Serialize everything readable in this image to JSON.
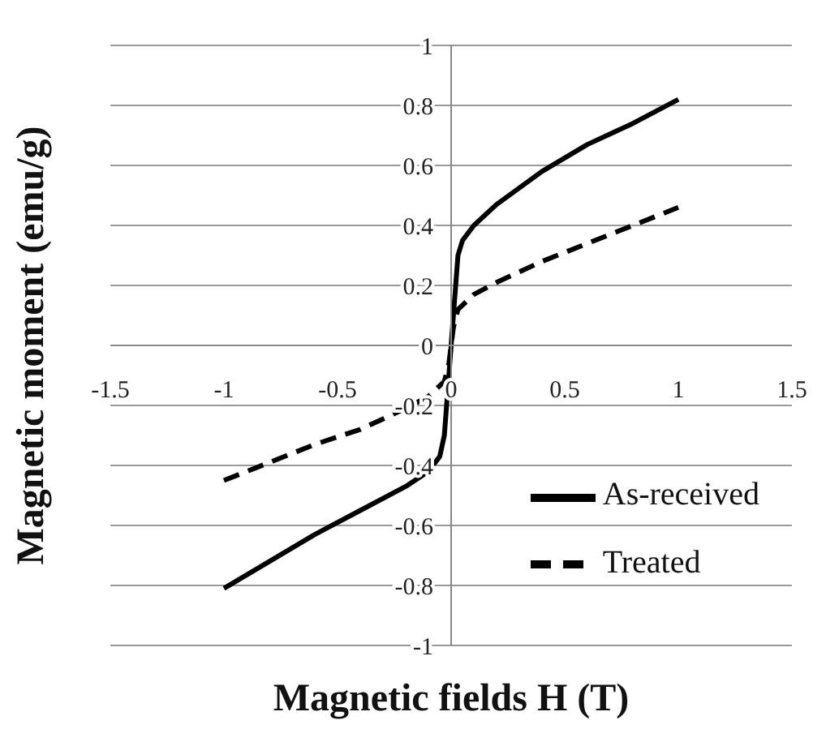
{
  "chart_data": {
    "type": "line",
    "xlabel": "Magnetic fields H (T)",
    "ylabel": "Magnetic moment (emu/g)",
    "xlim": [
      -1.5,
      1.5
    ],
    "xticks": [
      -1.5,
      -1,
      -0.5,
      0,
      0.5,
      1,
      1.5
    ],
    "ylim": [
      -1,
      1
    ],
    "yticks": [
      -1,
      -0.8,
      -0.6,
      -0.4,
      -0.2,
      0,
      0.2,
      0.4,
      0.6,
      0.8,
      1
    ],
    "grid": "y",
    "legend": "bottom right",
    "marker": "none",
    "series": [
      {
        "name": "As-received",
        "color": "#000000",
        "line_style": "solid",
        "x": [
          -1,
          -0.8,
          -0.6,
          -0.4,
          -0.2,
          -0.1,
          -0.05,
          -0.03,
          -0.02,
          -0.01,
          0,
          0.01,
          0.02,
          0.03,
          0.05,
          0.1,
          0.2,
          0.4,
          0.6,
          0.8,
          1
        ],
        "values": [
          -0.81,
          -0.72,
          -0.63,
          -0.55,
          -0.47,
          -0.42,
          -0.37,
          -0.3,
          -0.2,
          -0.1,
          0,
          0.1,
          0.2,
          0.3,
          0.35,
          0.4,
          0.47,
          0.58,
          0.67,
          0.74,
          0.82
        ]
      },
      {
        "name": "Treated",
        "color": "#000000",
        "line_style": "dashed",
        "x": [
          -1,
          -0.8,
          -0.6,
          -0.4,
          -0.2,
          -0.1,
          -0.03,
          -0.01,
          0,
          0.01,
          0.03,
          0.1,
          0.2,
          0.4,
          0.6,
          0.8,
          1
        ],
        "values": [
          -0.45,
          -0.39,
          -0.33,
          -0.28,
          -0.21,
          -0.17,
          -0.12,
          -0.06,
          0,
          0.06,
          0.12,
          0.17,
          0.21,
          0.28,
          0.34,
          0.4,
          0.46
        ]
      }
    ]
  }
}
